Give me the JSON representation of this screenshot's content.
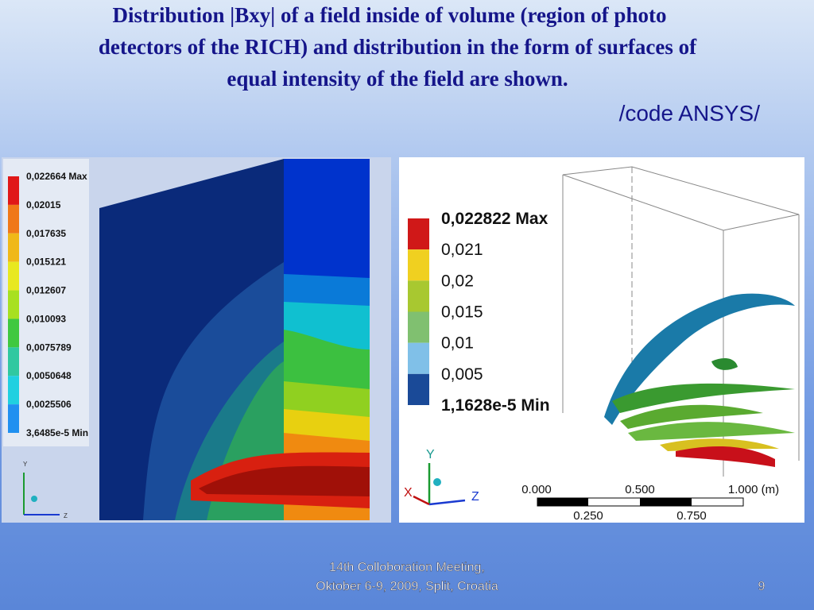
{
  "title": {
    "lines": [
      "Distribution |Bxy| of a field inside of volume  (region of photo",
      "detectors of the RICH) and distribution in the form of surfaces of",
      "equal intensity of the field are shown."
    ],
    "source": "/code ANSYS/"
  },
  "left_figure": {
    "legend": [
      "0,022664 Max",
      "0,02015",
      "0,017635",
      "0,015121",
      "0,012607",
      "0,010093",
      "0,0075789",
      "0,0050648",
      "0,0025506",
      "3,6485e-5 Min"
    ],
    "axes": [
      "Y",
      "Z"
    ]
  },
  "right_figure": {
    "legend": [
      "0,022822 Max",
      "0,021",
      "0,02",
      "0,015",
      "0,01",
      "0,005",
      "1,1628e-5 Min"
    ],
    "axes": [
      "Y",
      "X",
      "Z"
    ],
    "scale_top": [
      "0.000",
      "0.500",
      "1.000 (m)"
    ],
    "scale_bottom": [
      "0.250",
      "0.750"
    ]
  },
  "footer": {
    "lines": [
      "14th Colloboration Meeting,",
      "Oktober 6-9, 2009, Split, Croatia"
    ],
    "page": "9"
  }
}
